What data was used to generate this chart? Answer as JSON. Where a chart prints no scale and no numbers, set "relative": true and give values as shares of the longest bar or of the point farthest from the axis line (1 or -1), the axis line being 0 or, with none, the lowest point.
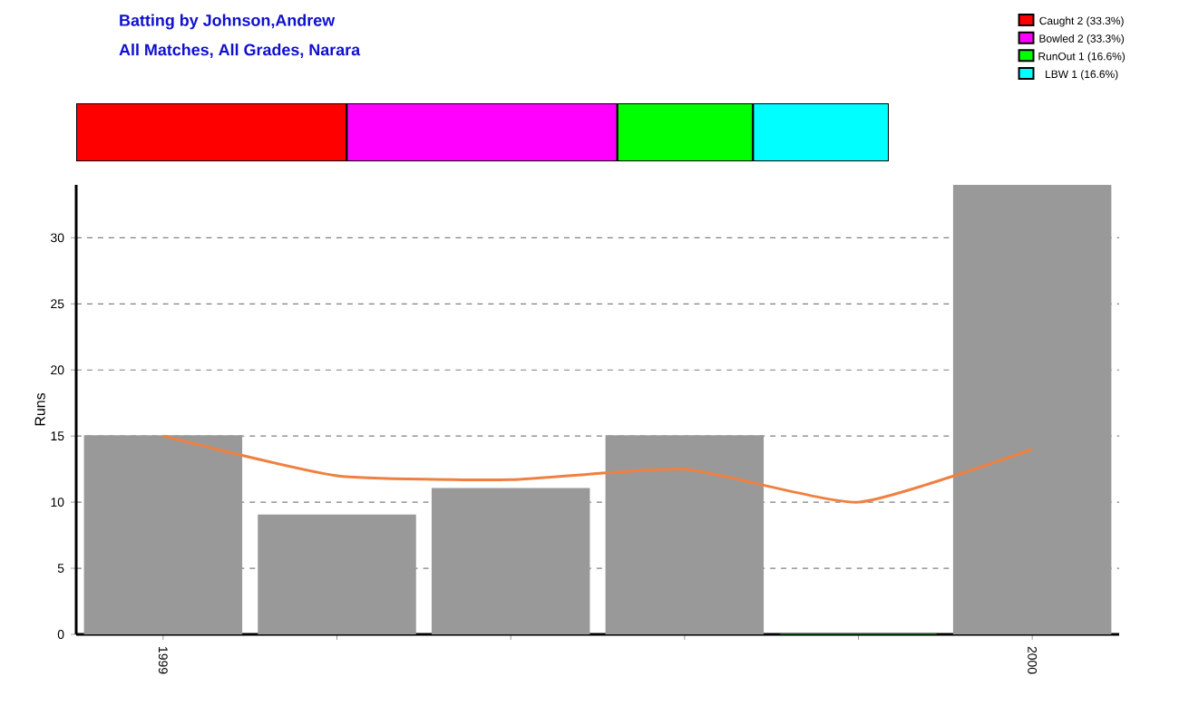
{
  "chart_data": [
    {
      "type": "bar",
      "orientation": "horizontal",
      "stacked": true,
      "title": "Batting by Johnson,Andrew",
      "subtitle": "All Matches, All Grades, Narara",
      "categories": [
        null
      ],
      "relative": true,
      "tick_labels": false,
      "legend": "top right",
      "series": [
        {
          "name": "Caught 2 (33.3%)",
          "color": "#ff0000",
          "values": [
            0.333
          ]
        },
        {
          "name": "Bowled 2 (33.3%)",
          "color": "#ff00ff",
          "values": [
            0.333
          ]
        },
        {
          "name": "RunOut 1 (16.6%)",
          "color": "#00ff00",
          "values": [
            0.167
          ]
        },
        {
          "name": "LBW 1 (16.6%)",
          "color": "#00ffff",
          "values": [
            0.167
          ]
        }
      ]
    },
    {
      "type": "bar",
      "categories": [
        "1999",
        null,
        null,
        null,
        null,
        "2000"
      ],
      "ylabel": "Runs",
      "ylim": [
        0,
        34
      ],
      "yticks": [
        0,
        5,
        10,
        15,
        20,
        25,
        30
      ],
      "grid": "y",
      "series": [
        {
          "type": "bar",
          "values": [
            15,
            9,
            11,
            15,
            0,
            34
          ],
          "colors": [
            "#999999",
            "#999999",
            "#999999",
            "#999999",
            "#008000",
            "#999999"
          ]
        },
        {
          "type": "line",
          "color": "#f08040",
          "values": [
            15,
            12,
            11.7,
            12.5,
            10,
            14
          ]
        }
      ]
    }
  ]
}
